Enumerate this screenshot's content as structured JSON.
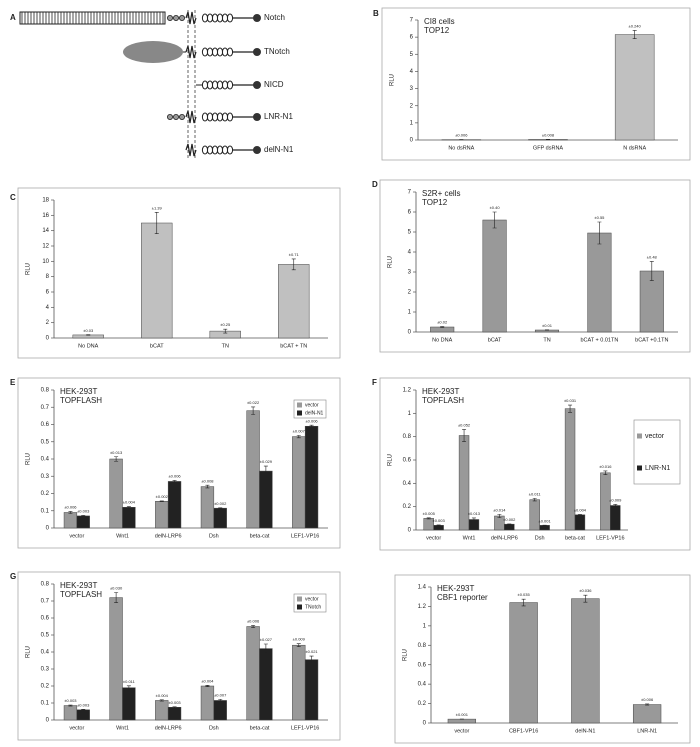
{
  "diagram": {
    "label": "A",
    "rows": [
      "Notch",
      "TNotch",
      "NICD",
      "LNR-N1",
      "delN-N1"
    ]
  },
  "chart_data": [
    {
      "type": "bar",
      "label": "B",
      "annotations": [
        "CI8 cells",
        "TOP12"
      ],
      "ylabel": "RLU",
      "categories": [
        "No dsRNA",
        "GFP dsRNA",
        "N dsRNA"
      ],
      "values": [
        0.02,
        0.03,
        6.15
      ],
      "errors": [
        0.006,
        0.008,
        0.24
      ],
      "error_labels": [
        "±0.006",
        "±0.008",
        "±0.240"
      ],
      "color": "#c0c0c0",
      "ylim": [
        0,
        7
      ],
      "yticks": [
        0,
        1,
        2,
        3,
        4,
        5,
        6,
        7
      ]
    },
    {
      "type": "bar",
      "label": "C",
      "ylabel": "RLU",
      "categories": [
        "No DNA",
        "bCAT",
        "TN",
        "bCAT + TN"
      ],
      "values": [
        0.4,
        15.0,
        0.9,
        9.6
      ],
      "errors": [
        0.03,
        1.39,
        0.25,
        0.71
      ],
      "error_labels": [
        "±0.03",
        "±1.39",
        "±0.25",
        "±0.71"
      ],
      "color": "#c0c0c0",
      "ylim": [
        0,
        18
      ],
      "yticks": [
        0,
        2,
        4,
        6,
        8,
        10,
        12,
        14,
        16,
        18
      ]
    },
    {
      "type": "bar",
      "label": "D",
      "annotations": [
        "S2R+ cells",
        "TOP12"
      ],
      "ylabel": "RLU",
      "categories": [
        "No DNA",
        "bCAT",
        "TN",
        "bCAT + 0.01TN",
        "bCAT +0.1TN"
      ],
      "values": [
        0.25,
        5.6,
        0.1,
        4.95,
        3.05
      ],
      "errors": [
        0.02,
        0.4,
        0.01,
        0.55,
        0.48
      ],
      "error_labels": [
        "±0.02",
        "±0.40",
        "±0.01",
        "±0.55",
        "±0.48"
      ],
      "color": "#999999",
      "ylim": [
        0,
        7
      ],
      "yticks": [
        0,
        1,
        2,
        3,
        4,
        5,
        6,
        7
      ]
    },
    {
      "type": "grouped-bar",
      "label": "E",
      "annotations": [
        "HEK-293T",
        "TOPFLASH"
      ],
      "ylabel": "RLU",
      "legend": "upper right",
      "categories": [
        "vector",
        "Wnt1",
        "delN-LRP6",
        "Dsh",
        "beta-cat",
        "LEF1-VP16"
      ],
      "series": [
        {
          "name": "vector",
          "color": "#999999",
          "values": [
            0.09,
            0.4,
            0.155,
            0.24,
            0.68,
            0.53
          ],
          "errors": [
            0.006,
            0.013,
            0.002,
            0.008,
            0.022,
            0.007
          ],
          "error_labels": [
            "±0.006",
            "±0.013",
            "±0.002",
            "±0.008",
            "±0.022",
            "±0.007"
          ]
        },
        {
          "name": "delN-N1",
          "color": "#222222",
          "values": [
            0.07,
            0.12,
            0.27,
            0.115,
            0.33,
            0.59
          ],
          "errors": [
            0.003,
            0.004,
            0.006,
            0.002,
            0.029,
            0.006
          ],
          "error_labels": [
            "±0.003",
            "±0.004",
            "±0.006",
            "±0.002",
            "±0.029",
            "±0.006"
          ]
        }
      ],
      "ylim": [
        0,
        0.8
      ],
      "yticks": [
        0,
        0.1,
        0.2,
        0.3,
        0.4,
        0.5,
        0.6,
        0.7,
        0.8
      ]
    },
    {
      "type": "grouped-bar",
      "label": "F",
      "annotations": [
        "HEK-293T",
        "TOPFLASH"
      ],
      "ylabel": "RLU",
      "legend": "right",
      "categories": [
        "vector",
        "Wnt1",
        "delN-LRP6",
        "Dsh",
        "beta-cat",
        "LEF1-VP16"
      ],
      "series": [
        {
          "name": "vector",
          "color": "#999999",
          "values": [
            0.1,
            0.81,
            0.12,
            0.26,
            1.04,
            0.49
          ],
          "errors": [
            0.005,
            0.052,
            0.014,
            0.011,
            0.031,
            0.016
          ],
          "error_labels": [
            "±0.005",
            "±0.052",
            "±0.014",
            "±0.011",
            "±0.031",
            "±0.016"
          ]
        },
        {
          "name": "LNR-N1",
          "color": "#222222",
          "values": [
            0.04,
            0.09,
            0.05,
            0.04,
            0.13,
            0.21
          ],
          "errors": [
            0.003,
            0.013,
            0.002,
            0.001,
            0.004,
            0.009
          ],
          "error_labels": [
            "±0.003",
            "±0.013",
            "±0.002",
            "±0.001",
            "±0.004",
            "±0.009"
          ]
        }
      ],
      "ylim": [
        0,
        1.2
      ],
      "yticks": [
        0,
        0.2,
        0.4,
        0.6,
        0.8,
        1,
        1.2
      ]
    },
    {
      "type": "grouped-bar",
      "label": "G",
      "annotations": [
        "HEK-293T",
        "TOPFLASH"
      ],
      "ylabel": "RLU",
      "legend": "upper right",
      "categories": [
        "vector",
        "Wnt1",
        "delN-LRP6",
        "Dsh",
        "beta-cat",
        "LEF1-VP16"
      ],
      "series": [
        {
          "name": "vector",
          "color": "#999999",
          "values": [
            0.085,
            0.72,
            0.115,
            0.2,
            0.55,
            0.44
          ],
          "errors": [
            0.003,
            0.03,
            0.004,
            0.004,
            0.006,
            0.009
          ],
          "error_labels": [
            "±0.003",
            "±0.030",
            "±0.004",
            "±0.004",
            "±0.006",
            "±0.009"
          ]
        },
        {
          "name": "TNotch",
          "color": "#222222",
          "values": [
            0.06,
            0.19,
            0.075,
            0.115,
            0.42,
            0.355
          ],
          "errors": [
            0.003,
            0.011,
            0.003,
            0.007,
            0.027,
            0.021
          ],
          "error_labels": [
            "±0.003",
            "±0.011",
            "±0.003",
            "±0.007",
            "±0.027",
            "±0.021"
          ]
        }
      ],
      "ylim": [
        0,
        0.8
      ],
      "yticks": [
        0,
        0.1,
        0.2,
        0.3,
        0.4,
        0.5,
        0.6,
        0.7,
        0.8
      ]
    },
    {
      "type": "bar",
      "annotations": [
        "HEK-293T",
        "CBF1 reporter"
      ],
      "ylabel": "RLU",
      "categories": [
        "vector",
        "CBF1-VP16",
        "delN-N1",
        "LNR-N1"
      ],
      "values": [
        0.04,
        1.24,
        1.28,
        0.19
      ],
      "errors": [
        0.001,
        0.035,
        0.036,
        0.006
      ],
      "error_labels": [
        "±0.001",
        "±0.035",
        "±0.036",
        "±0.006"
      ],
      "color": "#999999",
      "ylim": [
        0,
        1.4
      ],
      "yticks": [
        0,
        0.2,
        0.4,
        0.6,
        0.8,
        1,
        1.2,
        1.4
      ]
    }
  ]
}
